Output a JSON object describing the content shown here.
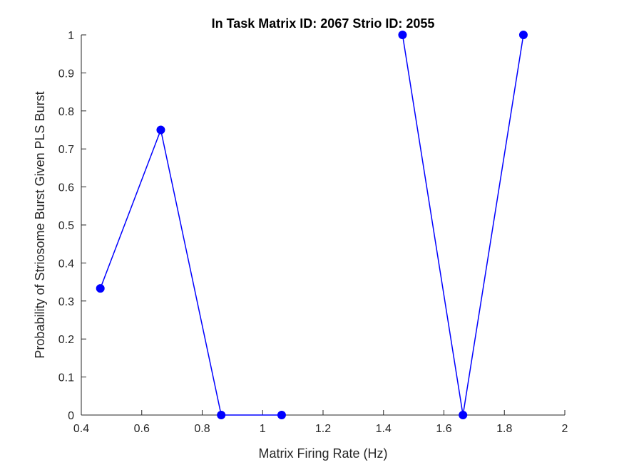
{
  "chart_data": {
    "type": "line",
    "title": "In Task Matrix ID: 2067 Strio ID: 2055",
    "xlabel": "Matrix Firing Rate (Hz)",
    "ylabel": "Probability of Striosome Burst Given PLS Burst",
    "xlim": [
      0.4,
      2
    ],
    "ylim": [
      0,
      1
    ],
    "x_ticks": [
      0.4,
      0.6,
      0.8,
      1,
      1.2,
      1.4,
      1.6,
      1.8,
      2
    ],
    "x_tick_labels": [
      "0.4",
      "0.6",
      "0.8",
      "1",
      "1.2",
      "1.4",
      "1.6",
      "1.8",
      "2"
    ],
    "y_ticks": [
      0,
      0.1,
      0.2,
      0.3,
      0.4,
      0.5,
      0.6,
      0.7,
      0.8,
      0.9,
      1
    ],
    "y_tick_labels": [
      "0",
      "0.1",
      "0.2",
      "0.3",
      "0.4",
      "0.5",
      "0.6",
      "0.7",
      "0.8",
      "0.9",
      "1"
    ],
    "grid": false,
    "series": [
      {
        "color": "#0000FF",
        "marker": "filled-circle",
        "segments": [
          {
            "x": [
              0.463,
              0.663,
              0.863,
              1.063
            ],
            "y": [
              0.333,
              0.75,
              0,
              0
            ]
          },
          {
            "x": [
              1.463,
              1.663,
              1.863
            ],
            "y": [
              1,
              0,
              1
            ]
          }
        ]
      }
    ]
  }
}
